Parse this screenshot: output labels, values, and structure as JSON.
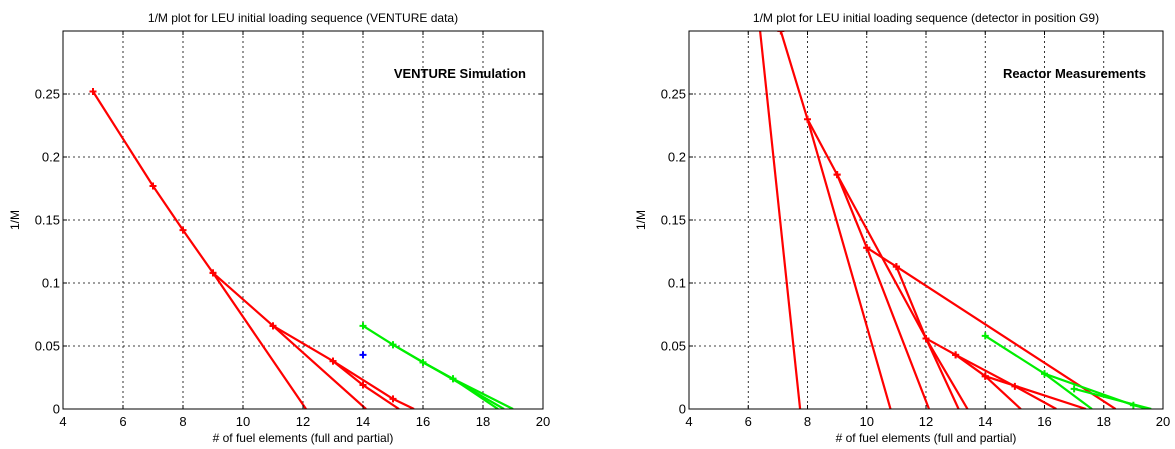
{
  "chart_data": [
    {
      "type": "line",
      "title": "1/M plot for LEU initial loading sequence (VENTURE data)",
      "xlabel": "# of fuel elements (full and partial)",
      "ylabel": "1/M",
      "annotation": "VENTURE Simulation",
      "xlim": [
        4,
        20
      ],
      "ylim": [
        0,
        0.3
      ],
      "xticks": [
        4,
        6,
        8,
        10,
        12,
        14,
        16,
        18,
        20
      ],
      "yticks": [
        0,
        0.05,
        0.1,
        0.15,
        0.2,
        0.25
      ],
      "ytick_labels": [
        "0",
        "0.05",
        "0.1",
        "0.15",
        "0.2",
        "0.25"
      ],
      "grid": true,
      "series": [
        {
          "color": "#ff0000",
          "x": [
            5,
            7,
            8,
            9,
            12.1
          ],
          "y": [
            0.252,
            0.177,
            0.142,
            0.108,
            0
          ],
          "marker_count": 4
        },
        {
          "color": "#ff0000",
          "x": [
            9,
            11,
            14.1
          ],
          "y": [
            0.108,
            0.066,
            0
          ],
          "marker_count": 2
        },
        {
          "color": "#ff0000",
          "x": [
            11,
            13,
            14,
            15.2
          ],
          "y": [
            0.066,
            0.038,
            0.019,
            0
          ],
          "marker_count": 3
        },
        {
          "color": "#ff0000",
          "x": [
            13,
            15,
            15.7
          ],
          "y": [
            0.038,
            0.008,
            0
          ],
          "marker_count": 2
        },
        {
          "color": "#00ee00",
          "x": [
            14,
            15,
            16,
            17,
            18.5
          ],
          "y": [
            0.066,
            0.051,
            0.037,
            0.024,
            0
          ],
          "marker_count": 4
        },
        {
          "color": "#00ee00",
          "x": [
            16,
            17,
            19
          ],
          "y": [
            0.037,
            0.024,
            0
          ],
          "marker_count": 2
        },
        {
          "color": "#00ee00",
          "x": [
            15,
            18.7
          ],
          "y": [
            0.051,
            0
          ],
          "marker_count": 1
        },
        {
          "color": "#0000ff",
          "x": [
            14
          ],
          "y": [
            0.043
          ],
          "marker_count": 1
        }
      ]
    },
    {
      "type": "line",
      "title": "1/M plot for LEU initial loading sequence (detector in position G9)",
      "xlabel": "# of fuel elements (full and partial)",
      "ylabel": "1/M",
      "annotation": "Reactor Measurements",
      "xlim": [
        4,
        20
      ],
      "ylim": [
        0,
        0.3
      ],
      "xticks": [
        4,
        6,
        8,
        10,
        12,
        14,
        16,
        18,
        20
      ],
      "yticks": [
        0,
        0.05,
        0.1,
        0.15,
        0.2,
        0.25
      ],
      "ytick_labels": [
        "0",
        "0.05",
        "0.1",
        "0.15",
        "0.2",
        "0.25"
      ],
      "grid": true,
      "series": [
        {
          "color": "#ff0000",
          "x": [
            6.4,
            7.75
          ],
          "y": [
            0.3,
            0
          ],
          "marker_count": 0
        },
        {
          "color": "#ff0000",
          "x": [
            7.1,
            8,
            10.8
          ],
          "y": [
            0.3,
            0.23,
            0
          ],
          "marker_count": 1
        },
        {
          "color": "#ff0000",
          "x": [
            8,
            9,
            10,
            12.1
          ],
          "y": [
            0.23,
            0.186,
            0.128,
            0
          ],
          "marker_count": 3
        },
        {
          "color": "#ff0000",
          "x": [
            9,
            12,
            13.1
          ],
          "y": [
            0.186,
            0.056,
            0
          ],
          "marker_count": 2
        },
        {
          "color": "#ff0000",
          "x": [
            10,
            11,
            12,
            13.4
          ],
          "y": [
            0.128,
            0.113,
            0.056,
            0
          ],
          "marker_count": 3
        },
        {
          "color": "#ff0000",
          "x": [
            11,
            18.4
          ],
          "y": [
            0.113,
            0
          ],
          "marker_count": 1
        },
        {
          "color": "#ff0000",
          "x": [
            12,
            13,
            14,
            15.2
          ],
          "y": [
            0.056,
            0.043,
            0.026,
            0
          ],
          "marker_count": 3
        },
        {
          "color": "#ff0000",
          "x": [
            13,
            15,
            16.4
          ],
          "y": [
            0.043,
            0.018,
            0
          ],
          "marker_count": 2
        },
        {
          "color": "#ff0000",
          "x": [
            14,
            17.4
          ],
          "y": [
            0.026,
            0
          ],
          "marker_count": 1
        },
        {
          "color": "#00ee00",
          "x": [
            14,
            16,
            17.6
          ],
          "y": [
            0.058,
            0.028,
            0
          ],
          "marker_count": 2
        },
        {
          "color": "#00ee00",
          "x": [
            16,
            19,
            19.5
          ],
          "y": [
            0.028,
            0.003,
            0
          ],
          "marker_count": 2
        },
        {
          "color": "#00ee00",
          "x": [
            17,
            19.6
          ],
          "y": [
            0.016,
            0
          ],
          "marker_count": 1
        }
      ]
    }
  ]
}
